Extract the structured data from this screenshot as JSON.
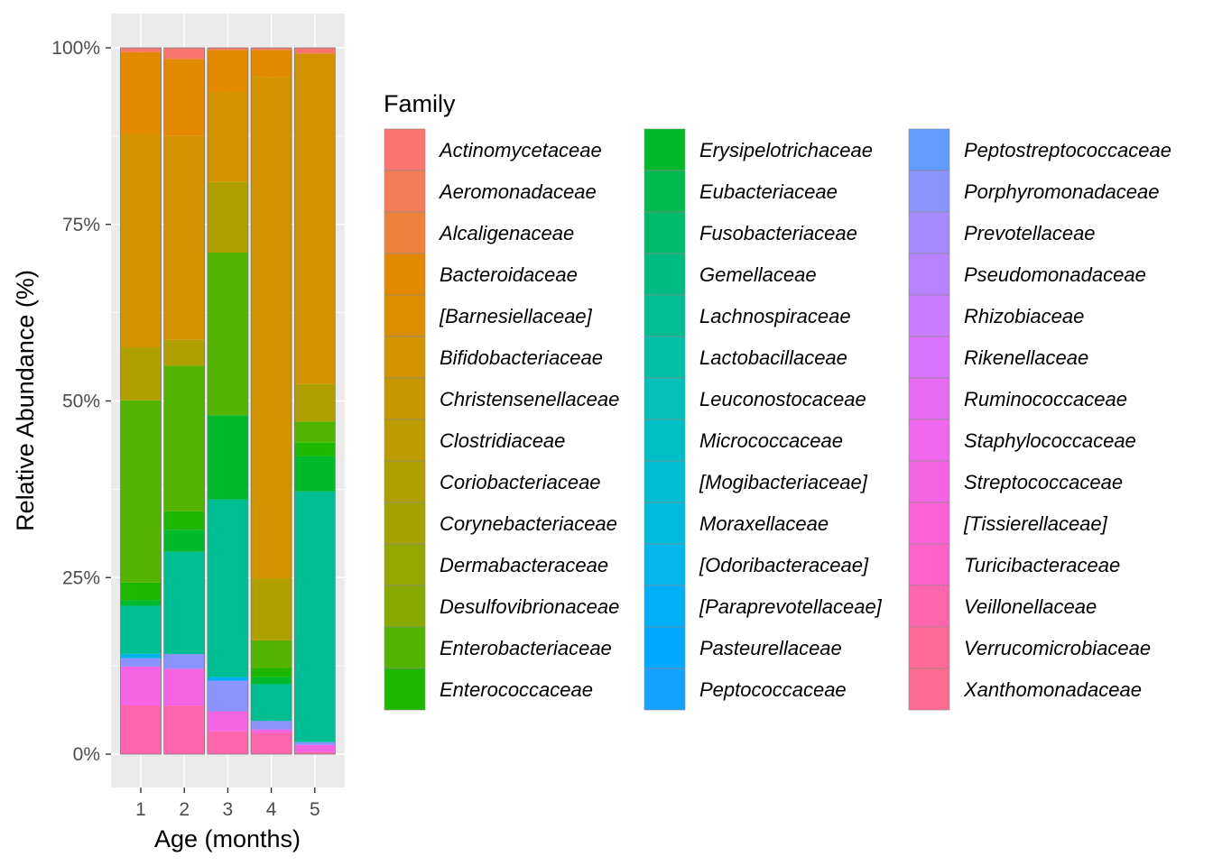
{
  "chart_data": {
    "type": "bar",
    "stacked": true,
    "normalized": true,
    "xlabel": "Age (months)",
    "ylabel": "Relative Abundance (%)",
    "categories": [
      "1",
      "2",
      "3",
      "4",
      "5"
    ],
    "ylim": [
      0,
      100
    ],
    "yticks": [
      0,
      25,
      50,
      75,
      100
    ],
    "ytick_labels": [
      "0%",
      "25%",
      "50%",
      "75%",
      "100%"
    ],
    "grid": true,
    "legend": {
      "title": "Family",
      "position": "right",
      "columns": 3
    },
    "series": [
      {
        "name": "Actinomycetaceae",
        "color": "#F8766D",
        "values": [
          0.6,
          1.5,
          0.3,
          0.3,
          0.8
        ]
      },
      {
        "name": "Aeromonadaceae",
        "color": "#F47D59",
        "values": [
          0,
          0,
          0,
          0,
          0
        ]
      },
      {
        "name": "Alcaligenaceae",
        "color": "#EC823C",
        "values": [
          0,
          0,
          0,
          0,
          0
        ]
      },
      {
        "name": "Bacteroidaceae",
        "color": "#E38900",
        "values": [
          11.6,
          10.5,
          5.9,
          3.8,
          0
        ]
      },
      {
        "name": "[Barnesiellaceae]",
        "color": "#DB8E00",
        "values": [
          0,
          0,
          0,
          0,
          0
        ]
      },
      {
        "name": "Bifidobacteriaceae",
        "color": "#D19300",
        "values": [
          30.2,
          27.7,
          12.6,
          71.0,
          46.8
        ]
      },
      {
        "name": "Christensenellaceae",
        "color": "#C79700",
        "values": [
          0,
          0,
          0,
          0,
          0
        ]
      },
      {
        "name": "Clostridiaceae",
        "color": "#BC9C00",
        "values": [
          0,
          0,
          0,
          0,
          0
        ]
      },
      {
        "name": "Coriobacteriaceae",
        "color": "#B09F00",
        "values": [
          7.5,
          3.5,
          9.9,
          8.8,
          5.3
        ]
      },
      {
        "name": "Corynebacteriaceae",
        "color": "#A4A300",
        "values": [
          0,
          0,
          0,
          0,
          0
        ]
      },
      {
        "name": "Dermabacteraceae",
        "color": "#96A600",
        "values": [
          0,
          0,
          0,
          0,
          0
        ]
      },
      {
        "name": "Desulfovibrionaceae",
        "color": "#87A900",
        "values": [
          0,
          0,
          0,
          0,
          0
        ]
      },
      {
        "name": "Enterobacteriaceae",
        "color": "#53B400",
        "values": [
          25.8,
          19.8,
          22.8,
          3.9,
          3.0
        ]
      },
      {
        "name": "Enterococcaceae",
        "color": "#1DB700",
        "values": [
          2.5,
          2.5,
          0,
          1.3,
          1.9
        ]
      },
      {
        "name": "Erysipelotrichaceae",
        "color": "#00B92B",
        "values": [
          0.8,
          3.0,
          11.8,
          1.0,
          5.0
        ]
      },
      {
        "name": "Eubacteriaceae",
        "color": "#00BA4F",
        "values": [
          0,
          0,
          0,
          0,
          0
        ]
      },
      {
        "name": "Fusobacteriaceae",
        "color": "#00BB6A",
        "values": [
          0,
          0,
          0,
          0,
          0
        ]
      },
      {
        "name": "Gemellaceae",
        "color": "#00BC80",
        "values": [
          0,
          0,
          0,
          0,
          0
        ]
      },
      {
        "name": "Lachnospiraceae",
        "color": "#00BE94",
        "values": [
          6.8,
          13.9,
          24.9,
          5.2,
          35.5
        ]
      },
      {
        "name": "Lactobacillaceae",
        "color": "#00BFA6",
        "values": [
          0,
          0,
          0,
          0,
          0
        ]
      },
      {
        "name": "Leuconostocaceae",
        "color": "#00C0B7",
        "values": [
          0,
          0,
          0,
          0,
          0
        ]
      },
      {
        "name": "Micrococcaceae",
        "color": "#00BFC4",
        "values": [
          0,
          0,
          0,
          0,
          0
        ]
      },
      {
        "name": "[Mogibacteriaceae]",
        "color": "#00BDD2",
        "values": [
          0,
          0,
          0,
          0,
          0
        ]
      },
      {
        "name": "Moraxellaceae",
        "color": "#00BADE",
        "values": [
          0,
          0,
          0,
          0,
          0
        ]
      },
      {
        "name": "[Odoribacteraceae]",
        "color": "#00B6EB",
        "values": [
          0.6,
          0,
          0,
          0,
          0
        ]
      },
      {
        "name": "[Paraprevotellaceae]",
        "color": "#00B0F6",
        "values": [
          0,
          0,
          0.5,
          0,
          0
        ]
      },
      {
        "name": "Pasteurellaceae",
        "color": "#00A9FF",
        "values": [
          0,
          0,
          0,
          0,
          0
        ]
      },
      {
        "name": "Peptococcaceae",
        "color": "#14A1FF",
        "values": [
          0,
          0,
          0,
          0,
          0
        ]
      },
      {
        "name": "Peptostreptococcaceae",
        "color": "#619CFF",
        "values": [
          0,
          0,
          0,
          0,
          0
        ]
      },
      {
        "name": "Porphyromonadaceae",
        "color": "#8B93FF",
        "values": [
          1.2,
          2.0,
          4.3,
          1.2,
          0.4
        ]
      },
      {
        "name": "Prevotellaceae",
        "color": "#A58AFF",
        "values": [
          0,
          0,
          0,
          0,
          0
        ]
      },
      {
        "name": "Pseudomonadaceae",
        "color": "#B983FF",
        "values": [
          0,
          0,
          0,
          0,
          0
        ]
      },
      {
        "name": "Rhizobiaceae",
        "color": "#C97CFF",
        "values": [
          0,
          0,
          0,
          0,
          0
        ]
      },
      {
        "name": "Rikenellaceae",
        "color": "#D874FD",
        "values": [
          0,
          0,
          0,
          0,
          0
        ]
      },
      {
        "name": "Ruminococcaceae",
        "color": "#E56BF2",
        "values": [
          0,
          0,
          0,
          0,
          0
        ]
      },
      {
        "name": "Staphylococcaceae",
        "color": "#EF67EB",
        "values": [
          0,
          0,
          0,
          0,
          0
        ]
      },
      {
        "name": "Streptococcaceae",
        "color": "#F564E3",
        "values": [
          5.5,
          5.0,
          2.8,
          0.5,
          1.0
        ]
      },
      {
        "name": "[Tissierellaceae]",
        "color": "#FA62D6",
        "values": [
          0,
          0,
          0,
          0,
          0
        ]
      },
      {
        "name": "Turicibacteraceae",
        "color": "#FF62C9",
        "values": [
          0,
          0,
          0,
          0,
          0
        ]
      },
      {
        "name": "Veillonellaceae",
        "color": "#FF65AC",
        "values": [
          6.9,
          6.6,
          3.2,
          3.0,
          0.3
        ]
      },
      {
        "name": "Verrucomicrobiaceae",
        "color": "#FF6A98",
        "values": [
          0,
          0,
          0,
          0,
          0
        ]
      },
      {
        "name": "Xanthomonadaceae",
        "color": "#FF6C91",
        "values": [
          0,
          0,
          0,
          0,
          0
        ]
      }
    ]
  }
}
